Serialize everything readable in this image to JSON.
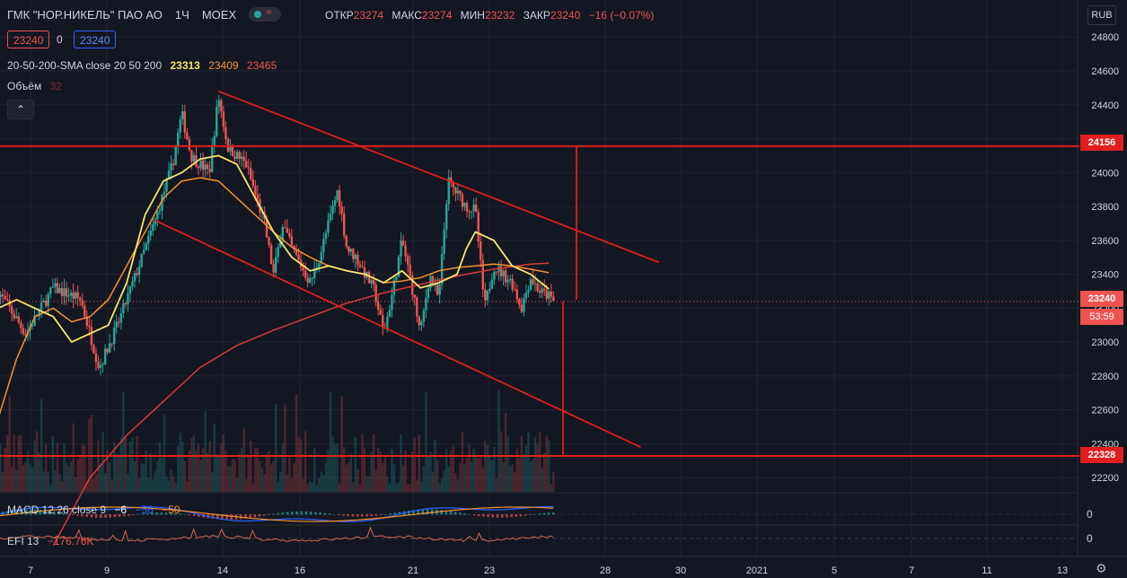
{
  "header": {
    "title": "ГМК \"НОР.НИКЕЛЬ\" ПАО АО",
    "interval": "1Ч",
    "exchange": "MOEX",
    "open_label": "ОТКР",
    "open": "23274",
    "high_label": "МАКС",
    "high": "23274",
    "low_label": "МИН",
    "low": "23232",
    "close_label": "ЗАКР",
    "close": "23240",
    "change": "−16 (−0.07%)"
  },
  "quote": {
    "bid": "23240",
    "spread": "0",
    "ask": "23240"
  },
  "indicators": {
    "sma_label": "20-50-200-SMA close 20 50 200",
    "sma20": "23313",
    "sma50": "23409",
    "sma200": "23465",
    "volume_label": "Объём",
    "volume": "32",
    "macd_label": "MACD 12 26 close 9",
    "macd": "−6",
    "macd_signal": "−56",
    "macd_hist": "−50",
    "efi_label": "EFI 13",
    "efi": "−176.76K",
    "collapse_icon": "chevron-up-icon"
  },
  "price_axis": {
    "currency": "RUB",
    "last_price": "23240",
    "countdown": "53:59",
    "level_high": "24156",
    "level_low": "22328",
    "macd_zero": "0",
    "efi_zero": "0",
    "settings_icon": "gear-icon"
  },
  "colors": {
    "background": "#131722",
    "up": "#26a69a",
    "down": "#ef5350",
    "sma20": "#f7e66b",
    "sma50": "#f5912f",
    "sma200": "#d83b3b",
    "drawings": "#e01e1e"
  },
  "chart_data": {
    "type": "candlestick",
    "symbol": "ГМК \"НОР.НИКЕЛЬ\" ПАО АО",
    "x_tick_labels": [
      "7",
      "9",
      "14",
      "16",
      "21",
      "23",
      "28",
      "30",
      "2021",
      "5",
      "7",
      "11",
      "13"
    ],
    "y_tick_labels": [
      22200,
      22400,
      22600,
      22800,
      23000,
      23200,
      23400,
      23600,
      23800,
      24000,
      24200,
      24400,
      24600,
      24800
    ],
    "ylim": [
      22090,
      24870
    ],
    "grid": true,
    "price_path": [
      [
        0,
        23300
      ],
      [
        3,
        23050
      ],
      [
        6,
        23320
      ],
      [
        9,
        23250
      ],
      [
        11,
        22850
      ],
      [
        13,
        23100
      ],
      [
        15,
        23400
      ],
      [
        17,
        23700
      ],
      [
        19,
        24050
      ],
      [
        20,
        24350
      ],
      [
        21,
        24100
      ],
      [
        23,
        24000
      ],
      [
        24,
        24450
      ],
      [
        25,
        24150
      ],
      [
        27,
        24050
      ],
      [
        29,
        23700
      ],
      [
        30,
        23400
      ],
      [
        31,
        23700
      ],
      [
        32,
        23550
      ],
      [
        34,
        23350
      ],
      [
        35,
        23500
      ],
      [
        36,
        23700
      ],
      [
        37,
        23900
      ],
      [
        38,
        23550
      ],
      [
        39,
        23500
      ],
      [
        41,
        23300
      ],
      [
        42,
        23050
      ],
      [
        43,
        23300
      ],
      [
        44,
        23600
      ],
      [
        45,
        23350
      ],
      [
        46,
        23050
      ],
      [
        47,
        23400
      ],
      [
        48,
        23250
      ],
      [
        49,
        23950
      ],
      [
        51,
        23800
      ],
      [
        52,
        23780
      ],
      [
        53,
        23200
      ],
      [
        54,
        23450
      ],
      [
        56,
        23350
      ],
      [
        57,
        23200
      ],
      [
        58,
        23380
      ],
      [
        59,
        23300
      ],
      [
        60,
        23270
      ],
      [
        60.5,
        23240
      ]
    ],
    "sma20_path": [
      [
        0,
        23200
      ],
      [
        2,
        23250
      ],
      [
        4,
        23200
      ],
      [
        6,
        23150
      ],
      [
        8,
        23000
      ],
      [
        10,
        23050
      ],
      [
        12,
        23100
      ],
      [
        14,
        23350
      ],
      [
        16,
        23750
      ],
      [
        18,
        23950
      ],
      [
        20,
        24000
      ],
      [
        22,
        24080
      ],
      [
        24,
        24100
      ],
      [
        26,
        24050
      ],
      [
        28,
        23850
      ],
      [
        30,
        23650
      ],
      [
        32,
        23500
      ],
      [
        34,
        23420
      ],
      [
        36,
        23450
      ],
      [
        38,
        23420
      ],
      [
        40,
        23400
      ],
      [
        42,
        23350
      ],
      [
        44,
        23420
      ],
      [
        46,
        23320
      ],
      [
        48,
        23350
      ],
      [
        50,
        23400
      ],
      [
        51,
        23550
      ],
      [
        52,
        23650
      ],
      [
        54,
        23600
      ],
      [
        56,
        23450
      ],
      [
        58,
        23400
      ],
      [
        60,
        23313
      ]
    ],
    "sma50_path": [
      [
        0,
        22550
      ],
      [
        2,
        22900
      ],
      [
        4,
        23150
      ],
      [
        6,
        23200
      ],
      [
        8,
        23120
      ],
      [
        10,
        23150
      ],
      [
        12,
        23250
      ],
      [
        14,
        23450
      ],
      [
        16,
        23650
      ],
      [
        18,
        23850
      ],
      [
        20,
        23950
      ],
      [
        22,
        23970
      ],
      [
        24,
        23950
      ],
      [
        26,
        23850
      ],
      [
        28,
        23750
      ],
      [
        30,
        23650
      ],
      [
        32,
        23560
      ],
      [
        34,
        23500
      ],
      [
        36,
        23450
      ],
      [
        38,
        23420
      ],
      [
        40,
        23400
      ],
      [
        42,
        23350
      ],
      [
        44,
        23360
      ],
      [
        46,
        23380
      ],
      [
        48,
        23420
      ],
      [
        50,
        23440
      ],
      [
        52,
        23450
      ],
      [
        54,
        23460
      ],
      [
        56,
        23450
      ],
      [
        58,
        23430
      ],
      [
        60,
        23409
      ]
    ],
    "sma200_path": [
      [
        6,
        21800
      ],
      [
        10,
        22200
      ],
      [
        14,
        22450
      ],
      [
        18,
        22650
      ],
      [
        22,
        22850
      ],
      [
        26,
        22980
      ],
      [
        30,
        23070
      ],
      [
        34,
        23150
      ],
      [
        38,
        23230
      ],
      [
        42,
        23290
      ],
      [
        46,
        23340
      ],
      [
        50,
        23390
      ],
      [
        54,
        23430
      ],
      [
        58,
        23460
      ],
      [
        60,
        23465
      ]
    ],
    "trendlines": [
      {
        "from": [
          24,
          24480
        ],
        "to": [
          72,
          23470
        ]
      },
      {
        "from": [
          17,
          23720
        ],
        "to": [
          70,
          22380
        ]
      }
    ],
    "horizontal_levels": [
      24156,
      22328
    ],
    "last_price": 23240
  }
}
